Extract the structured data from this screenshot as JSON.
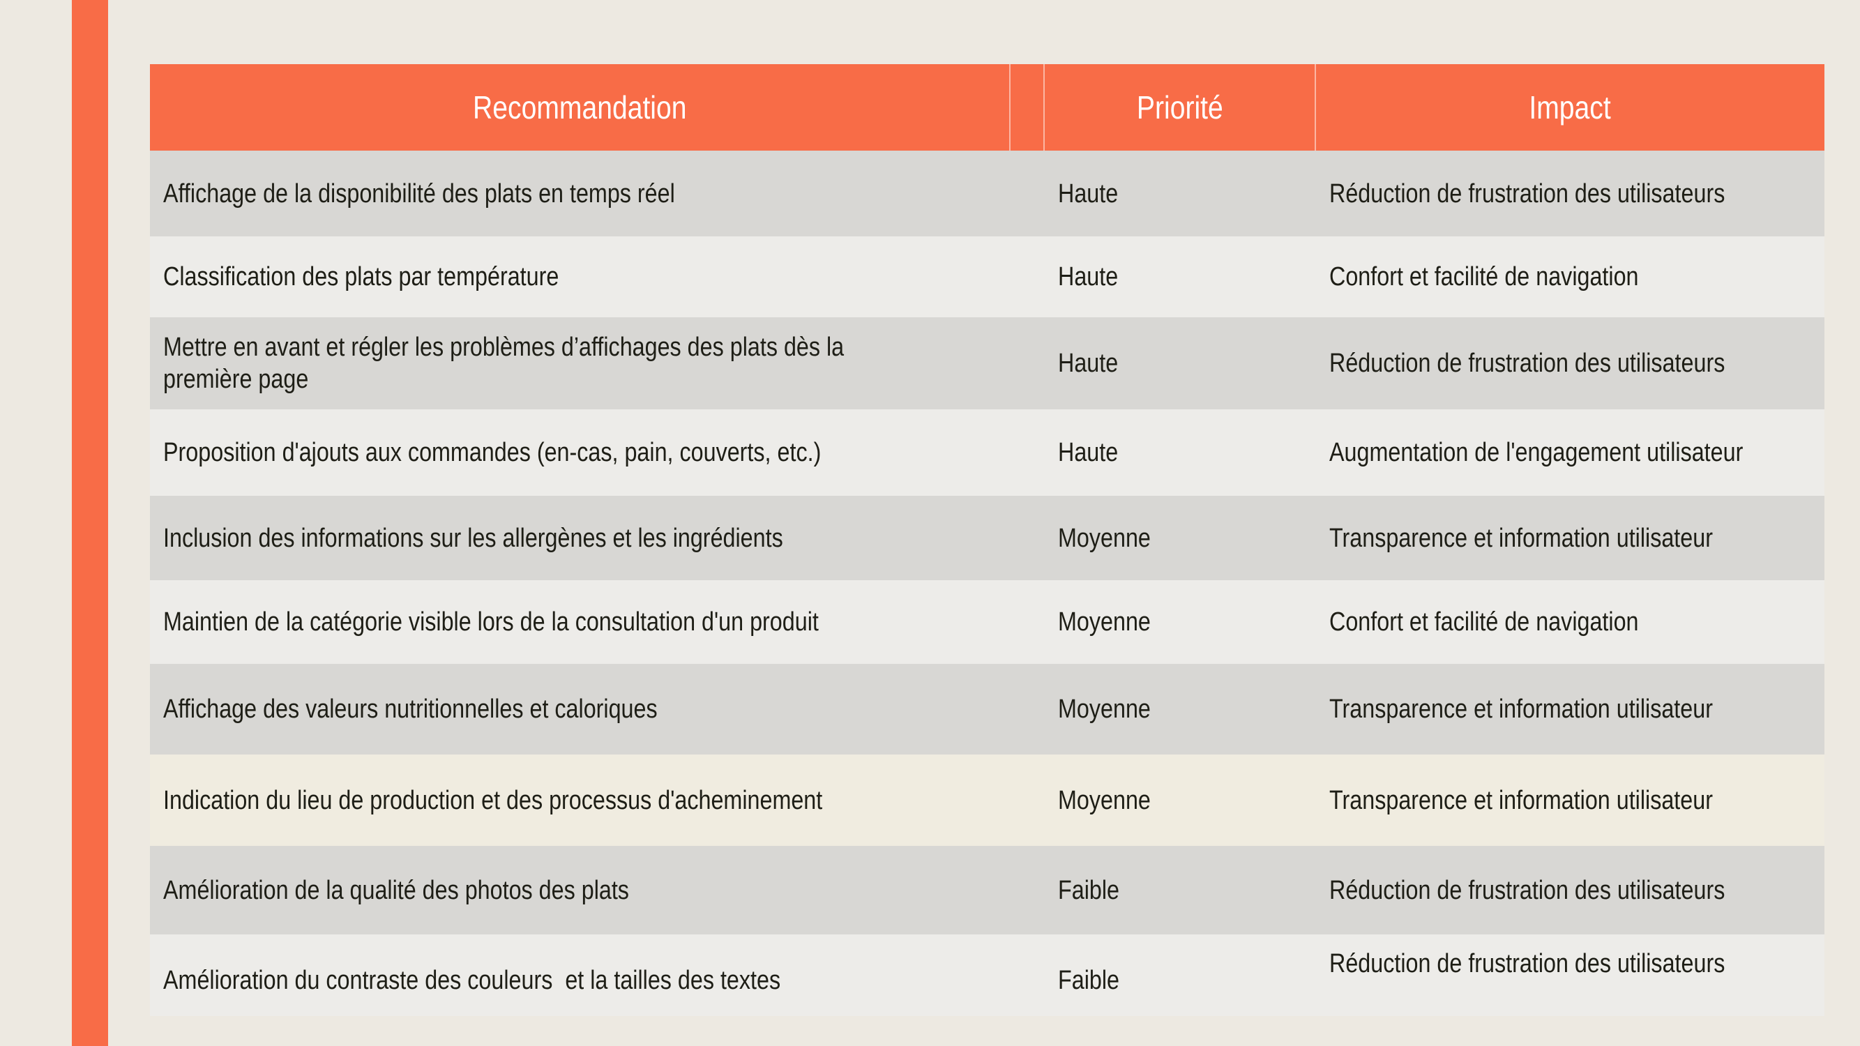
{
  "palette": {
    "accent_orange": "#F86C47",
    "page_background": "#EDE9E1",
    "row_dark": "#D8D7D4",
    "row_light": "#EDECE9",
    "row_cream": "#F0ECE0",
    "header_text": "#FFFFFF",
    "body_text": "#1E1E16"
  },
  "table": {
    "headers": [
      "Recommandation",
      "Priorité",
      "Impact"
    ],
    "rows": [
      {
        "recommendation": "Affichage de la disponibilité des plats en temps réel",
        "priority": "Haute",
        "impact": "Réduction de frustration des utilisateurs",
        "shade": "dark"
      },
      {
        "recommendation": "Classification des plats par température",
        "priority": "Haute",
        "impact": "Confort et facilité de navigation",
        "shade": "light"
      },
      {
        "recommendation": "Mettre en avant et régler les problèmes d’affichages des plats dès la première page",
        "priority": "Haute",
        "impact": "Réduction de frustration des utilisateurs",
        "shade": "dark"
      },
      {
        "recommendation": "Proposition d'ajouts aux commandes (en-cas, pain, couverts, etc.)",
        "priority": "Haute",
        "impact": "Augmentation de l'engagement utilisateur",
        "shade": "light"
      },
      {
        "recommendation": "Inclusion des informations sur les allergènes et les ingrédients",
        "priority": "Moyenne",
        "impact": "Transparence et information utilisateur",
        "shade": "dark"
      },
      {
        "recommendation": "Maintien de la catégorie visible lors de la consultation d'un produit",
        "priority": "Moyenne",
        "impact": "Confort et facilité de navigation",
        "shade": "light"
      },
      {
        "recommendation": "Affichage des valeurs nutritionnelles et caloriques",
        "priority": "Moyenne",
        "impact": "Transparence et information utilisateur",
        "shade": "dark"
      },
      {
        "recommendation": "Indication du lieu de production et des processus d'acheminement",
        "priority": "Moyenne",
        "impact": "Transparence et information utilisateur",
        "shade": "cream"
      },
      {
        "recommendation": "Amélioration de la qualité des photos des plats",
        "priority": "Faible",
        "impact": "Réduction de frustration des utilisateurs",
        "shade": "dark"
      },
      {
        "recommendation": "Amélioration du contraste des couleurs  et la tailles des textes",
        "priority": "Faible",
        "impact": "Réduction de frustration des utilisateurs",
        "shade": "light"
      }
    ]
  }
}
